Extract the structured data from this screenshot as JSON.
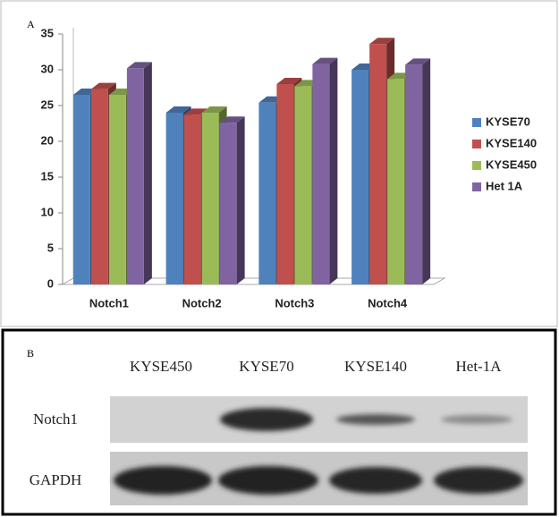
{
  "chart_data": {
    "type": "bar3d",
    "panel_label": "A",
    "categories": [
      "Notch1",
      "Notch2",
      "Notch3",
      "Notch4"
    ],
    "series": [
      {
        "name": "KYSE70",
        "color": "#4f81bd",
        "values": [
          26.5,
          24,
          25.4,
          30
        ]
      },
      {
        "name": "KYSE140",
        "color": "#c0504d",
        "values": [
          27.3,
          23.7,
          28,
          33.6
        ]
      },
      {
        "name": "KYSE450",
        "color": "#9bbb59",
        "values": [
          26.5,
          24,
          27.7,
          28.7
        ]
      },
      {
        "name": "Het 1A",
        "color": "#8064a2",
        "values": [
          30.2,
          22.6,
          30.8,
          30.7
        ]
      }
    ],
    "ylim": [
      0,
      35
    ],
    "yticks": [
      0,
      5,
      10,
      15,
      20,
      25,
      30,
      35
    ],
    "grid": false,
    "legend": "right"
  },
  "blot": {
    "panel_label": "B",
    "columns": [
      "KYSE450",
      "KYSE70",
      "KYSE140",
      "Het-1A"
    ],
    "rows": [
      "Notch1",
      "GAPDH"
    ]
  }
}
